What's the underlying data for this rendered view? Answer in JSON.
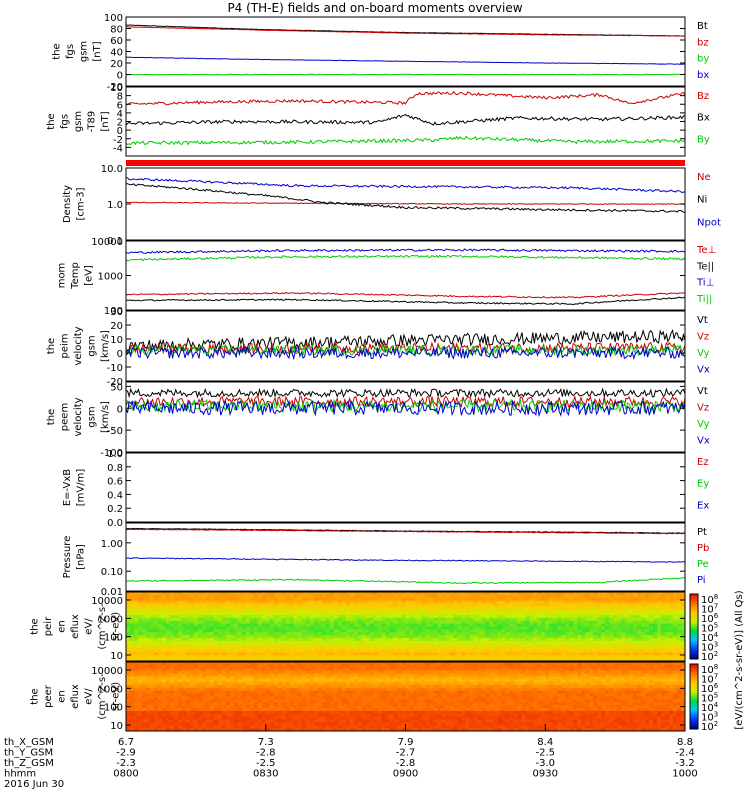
{
  "title": "P4 (TH-E) fields and on-board moments overview",
  "chart_data": {
    "type": "line",
    "time_axis": {
      "tick_labels": [
        "0800",
        "0830",
        "0900",
        "0930",
        "1000"
      ],
      "date_label": "2016 Jun 30",
      "rows": [
        {
          "name": "th_X_GSM",
          "values": [
            "6.7",
            "7.3",
            "7.9",
            "8.4",
            "8.8"
          ]
        },
        {
          "name": "th_Y_GSM",
          "values": [
            "-2.9",
            "-2.8",
            "-2.7",
            "-2.5",
            "-2.4"
          ]
        },
        {
          "name": "th_Z_GSM",
          "values": [
            "-2.3",
            "-2.5",
            "-2.8",
            "-3.0",
            "-3.2"
          ]
        },
        {
          "name": "hhmm",
          "values": [
            "0800",
            "0830",
            "0900",
            "0930",
            "1000"
          ]
        }
      ]
    },
    "panels": [
      {
        "id": "fgs",
        "ylabel": [
          "the",
          "fgs",
          "gsm",
          "[nT]"
        ],
        "scale": "linear",
        "ylim": [
          -20,
          100
        ],
        "ticks": [
          "100",
          "80",
          "60",
          "40",
          "20",
          "0",
          "-20"
        ],
        "tick_values": [
          100,
          80,
          60,
          40,
          20,
          0,
          -20
        ],
        "series": [
          {
            "name": "Bt",
            "color": "#000000",
            "x": [
              0,
              0.25,
              0.5,
              0.75,
              1
            ],
            "y": [
              86,
              78,
              73,
              70,
              67
            ],
            "noise": 0.3
          },
          {
            "name": "bz",
            "color": "#cc0000",
            "x": [
              0,
              0.25,
              0.5,
              0.75,
              1
            ],
            "y": [
              83,
              77,
              72,
              69,
              67
            ],
            "noise": 0.3
          },
          {
            "name": "by",
            "color": "#00cc00",
            "x": [
              0,
              1
            ],
            "y": [
              0,
              0
            ],
            "noise": 0.4
          },
          {
            "name": "bx",
            "color": "#0000cc",
            "x": [
              0,
              0.25,
              0.5,
              0.75,
              1
            ],
            "y": [
              30,
              26,
              23,
              20,
              18
            ],
            "noise": 0.3
          }
        ]
      },
      {
        "id": "fgs_dsl",
        "ylabel": [
          "the",
          "fgs",
          "gsm",
          "-T89",
          "[nT]"
        ],
        "scale": "linear",
        "ylim": [
          -6,
          10
        ],
        "ticks": [
          "10",
          "8",
          "6",
          "4",
          "2",
          "0",
          "-2",
          "-4"
        ],
        "tick_values": [
          10,
          8,
          6,
          4,
          2,
          0,
          -2,
          -4
        ],
        "series": [
          {
            "name": "Bz",
            "color": "#cc0000",
            "x": [
              0,
              0.15,
              0.3,
              0.5,
              0.52,
              0.6,
              0.75,
              0.85,
              0.9,
              1
            ],
            "y": [
              6,
              6.5,
              6.8,
              6.3,
              8.5,
              8.6,
              7.5,
              8.2,
              6.2,
              8.5
            ],
            "noise": 0.35
          },
          {
            "name": "Bx",
            "color": "#000000",
            "x": [
              0,
              0.2,
              0.45,
              0.5,
              0.55,
              0.7,
              0.85,
              1
            ],
            "y": [
              1.5,
              2,
              1.8,
              3.5,
              1.5,
              2.8,
              2.5,
              3
            ],
            "noise": 0.4
          },
          {
            "name": "By",
            "color": "#00cc00",
            "x": [
              0,
              0.3,
              0.55,
              0.6,
              0.8,
              1
            ],
            "y": [
              -3,
              -2.8,
              -2.3,
              -1.8,
              -2.7,
              -2.5
            ],
            "noise": 0.4
          }
        ]
      },
      {
        "id": "density",
        "ylabel": [
          "Density",
          "[cm-3]"
        ],
        "scale": "log",
        "ylim": [
          0.1,
          10
        ],
        "ticks": [
          "10.0",
          "1.0",
          "0.1"
        ],
        "tick_values": [
          10,
          1,
          0.1
        ],
        "series": [
          {
            "name": "Ne",
            "color": "#cc0000",
            "x": [
              0,
              0.3,
              0.6,
              1
            ],
            "y": [
              1.1,
              1.05,
              1.0,
              1.0
            ],
            "noise": 0.01
          },
          {
            "name": "Ni",
            "color": "#000000",
            "x": [
              0,
              0.2,
              0.35,
              0.5,
              0.75,
              1
            ],
            "y": [
              3.5,
              2.0,
              1.1,
              0.8,
              0.7,
              0.62
            ],
            "noise": 0.03
          },
          {
            "name": "Npot",
            "color": "#0000cc",
            "x": [
              0,
              0.3,
              0.6,
              0.8,
              1
            ],
            "y": [
              5.0,
              3.2,
              3.0,
              2.8,
              2.2
            ],
            "noise": 0.03
          }
        ]
      },
      {
        "id": "mom_temp",
        "ylabel": [
          "mom",
          "Temp",
          "[eV]"
        ],
        "scale": "log",
        "ylim": [
          100,
          10000
        ],
        "ticks": [
          "10000",
          "1000",
          "100"
        ],
        "tick_values": [
          10000,
          1000,
          100
        ],
        "series": [
          {
            "name": "Te⊥",
            "color": "#cc0000",
            "x": [
              0,
              0.3,
              0.6,
              0.8,
              1
            ],
            "y": [
              280,
              310,
              250,
              230,
              310
            ],
            "noise": 0.02
          },
          {
            "name": "Te||",
            "color": "#000000",
            "x": [
              0,
              0.3,
              0.6,
              0.8,
              1
            ],
            "y": [
              190,
              200,
              160,
              150,
              230
            ],
            "noise": 0.02
          },
          {
            "name": "Ti⊥",
            "color": "#0000cc",
            "x": [
              0,
              0.3,
              0.6,
              1
            ],
            "y": [
              4600,
              5300,
              5500,
              5000
            ],
            "noise": 0.03
          },
          {
            "name": "Ti||",
            "color": "#00cc00",
            "x": [
              0,
              0.3,
              0.6,
              1
            ],
            "y": [
              2800,
              3500,
              3600,
              3000
            ],
            "noise": 0.03
          }
        ]
      },
      {
        "id": "peim_vel",
        "ylabel": [
          "the",
          "peim",
          "velocity",
          "gsm",
          "[km/s]"
        ],
        "scale": "linear",
        "ylim": [
          -20,
          30
        ],
        "ticks": [
          "30",
          "20",
          "10",
          "0",
          "-10",
          "-20"
        ],
        "tick_values": [
          30,
          20,
          10,
          0,
          -10,
          -20
        ],
        "series": [
          {
            "name": "Vt",
            "color": "#000000",
            "x": [
              0,
              0.5,
              1
            ],
            "y": [
              5,
              9,
              12
            ],
            "noise": 4.5
          },
          {
            "name": "Vz",
            "color": "#cc0000",
            "x": [
              0,
              1
            ],
            "y": [
              3,
              4
            ],
            "noise": 3.5
          },
          {
            "name": "Vy",
            "color": "#00cc00",
            "x": [
              0,
              1
            ],
            "y": [
              2,
              2
            ],
            "noise": 3.5
          },
          {
            "name": "Vx",
            "color": "#0000cc",
            "x": [
              0,
              1
            ],
            "y": [
              0,
              0
            ],
            "noise": 4
          }
        ]
      },
      {
        "id": "peem_vel",
        "ylabel": [
          "the",
          "peem",
          "velocity",
          "gsm",
          "[km/s]"
        ],
        "scale": "linear",
        "ylim": [
          -100,
          60
        ],
        "ticks": [
          "50",
          "0",
          "-50",
          "-100"
        ],
        "tick_values": [
          50,
          0,
          -50,
          -100
        ],
        "series": [
          {
            "name": "Vt",
            "color": "#000000",
            "x": [
              0,
              1
            ],
            "y": [
              35,
              35
            ],
            "noise": 9
          },
          {
            "name": "Vz",
            "color": "#cc0000",
            "x": [
              0,
              1
            ],
            "y": [
              15,
              15
            ],
            "noise": 12
          },
          {
            "name": "Vy",
            "color": "#00cc00",
            "x": [
              0,
              1
            ],
            "y": [
              5,
              5
            ],
            "noise": 14
          },
          {
            "name": "Vx",
            "color": "#0000cc",
            "x": [
              0,
              1
            ],
            "y": [
              0,
              0
            ],
            "noise": 16
          }
        ]
      },
      {
        "id": "efield",
        "ylabel": [
          "E=-VxB",
          "[mV/m]"
        ],
        "scale": "linear",
        "ylim": [
          0,
          1
        ],
        "ticks": [
          "1.0",
          "0.8",
          "0.6",
          "0.4",
          "0.2",
          "0.0"
        ],
        "tick_values": [
          1,
          0.8,
          0.6,
          0.4,
          0.2,
          0
        ],
        "series": [
          {
            "name": "Ez",
            "color": "#cc0000",
            "x": [],
            "y": [],
            "noise": 0
          },
          {
            "name": "Ey",
            "color": "#00cc00",
            "x": [],
            "y": [],
            "noise": 0
          },
          {
            "name": "Ex",
            "color": "#0000cc",
            "x": [],
            "y": [],
            "noise": 0
          }
        ]
      },
      {
        "id": "pressure",
        "ylabel": [
          "Pressure",
          "[nPa]"
        ],
        "scale": "log",
        "ylim": [
          0.02,
          5
        ],
        "ticks": [
          "1.00",
          "0.10",
          "0.01"
        ],
        "tick_values": [
          1,
          0.1,
          0.01
        ],
        "series": [
          {
            "name": "Pt",
            "color": "#000000",
            "x": [
              0,
              0.5,
              1
            ],
            "y": [
              3.2,
              2.6,
              2.2
            ],
            "noise": 0.01
          },
          {
            "name": "Pb",
            "color": "#cc0000",
            "x": [
              0,
              0.5,
              1
            ],
            "y": [
              3.0,
              2.5,
              2.1
            ],
            "noise": 0.01
          },
          {
            "name": "Pe",
            "color": "#00cc00",
            "x": [
              0,
              0.3,
              0.6,
              0.85,
              1
            ],
            "y": [
              0.045,
              0.05,
              0.038,
              0.04,
              0.058
            ],
            "noise": 0.02
          },
          {
            "name": "Pi",
            "color": "#0000cc",
            "x": [
              0,
              0.5,
              1
            ],
            "y": [
              0.29,
              0.24,
              0.21
            ],
            "noise": 0.015
          }
        ]
      }
    ],
    "spectrograms": [
      {
        "id": "peir",
        "ylabel": [
          "the",
          "peir",
          "en",
          "eflux",
          "eV/",
          "(cm^2-s-",
          "sr-eV)"
        ],
        "ticks": [
          "10000",
          "1000",
          "100",
          "10"
        ],
        "colorbar_ticks": [
          "10^8",
          "10^7",
          "10^6",
          "10^5",
          "10^4",
          "10^3",
          "10^2"
        ]
      },
      {
        "id": "peer",
        "ylabel": [
          "the",
          "peer",
          "en",
          "eflux",
          "eV/",
          "(cm^2-s-",
          "sr-eV)"
        ],
        "ticks": [
          "10000",
          "1000",
          "100",
          "10"
        ],
        "colorbar_ticks": [
          "10^8",
          "10^7",
          "10^6",
          "10^5",
          "10^4",
          "10^3",
          "10^2"
        ]
      }
    ],
    "colorbar_label": "[eV/(cm^2-s-sr-eV)] (All Qs)"
  }
}
